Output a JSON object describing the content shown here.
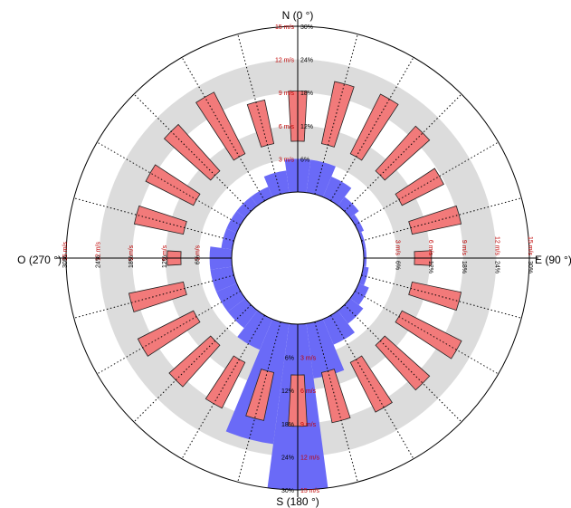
{
  "chart_data": {
    "type": "polar-bar",
    "compass_labels": {
      "north": "N (0 °)",
      "east": "E (90 °)",
      "south": "S (180 °)",
      "west": "O (270 °)"
    },
    "radial_ticks_speed": [
      "3 m/s",
      "6 m/s",
      "9 m/s",
      "12 m/s",
      "15 m/s"
    ],
    "radial_ticks_frequency": [
      "6%",
      "12%",
      "18%",
      "24%",
      "30%"
    ],
    "speed_range": [
      0,
      15
    ],
    "frequency_range": [
      0,
      30
    ],
    "sector_width_deg": 15,
    "series": [
      {
        "color": "#f27a7a",
        "description": "speed",
        "directions": [
          0,
          15,
          30,
          45,
          60,
          75,
          90,
          105,
          120,
          135,
          150,
          165,
          180,
          195,
          210,
          225,
          240,
          255,
          270,
          285,
          300,
          315,
          330,
          345
        ],
        "values": [
          7.5,
          8.7,
          9,
          8.4,
          7.2,
          7.5,
          4.5,
          7.5,
          9,
          8.4,
          8,
          7.6,
          7.6,
          7.4,
          7.6,
          8,
          8.6,
          8,
          4.2,
          7.5,
          7.8,
          8.6,
          9.2,
          7
        ]
      },
      {
        "color": "#6a6af7",
        "description": "frequency",
        "directions": [
          0,
          15,
          30,
          45,
          60,
          75,
          90,
          105,
          120,
          135,
          150,
          165,
          180,
          195,
          210,
          225,
          240,
          255,
          270,
          285,
          300,
          315,
          330,
          345
        ],
        "values": [
          6,
          6,
          4,
          2,
          1,
          0.5,
          0.5,
          1,
          2,
          3,
          5,
          10,
          30,
          22,
          6,
          4,
          4,
          4,
          4,
          2,
          2,
          2,
          2,
          4
        ]
      }
    ],
    "colors": {
      "band_gray": "#dcdcdc",
      "speed_bar": "#f27a7a",
      "frequency_bar": "#6a6af7",
      "axis": "#000000"
    }
  }
}
